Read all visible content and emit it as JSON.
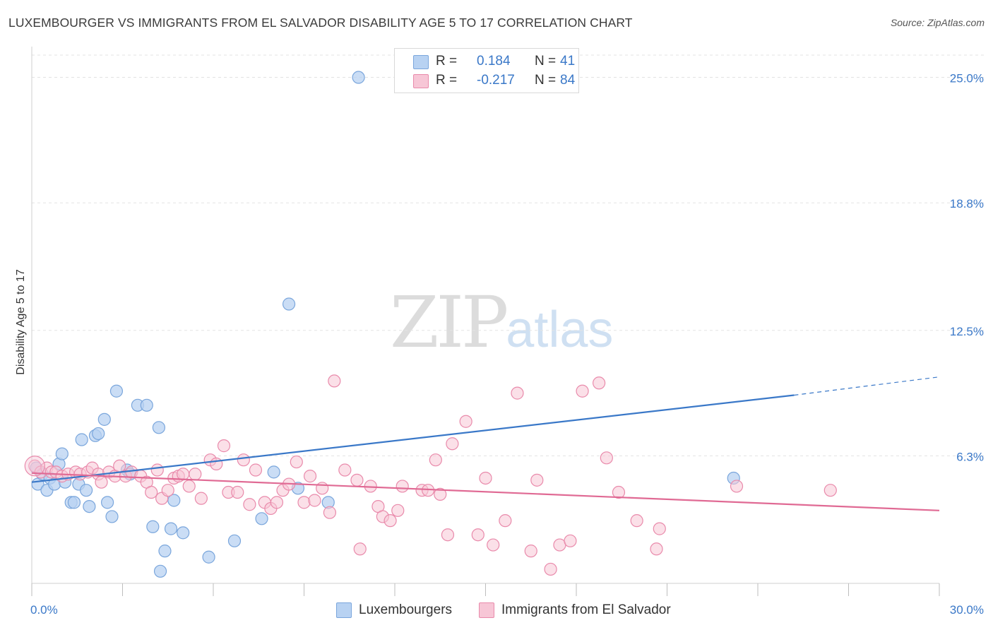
{
  "title": "LUXEMBOURGER VS IMMIGRANTS FROM EL SALVADOR DISABILITY AGE 5 TO 17 CORRELATION CHART",
  "source": "Source: ZipAtlas.com",
  "watermark": {
    "part1": "ZIP",
    "part2": "atlas"
  },
  "legend": {
    "rows": [
      {
        "r_label": "R =",
        "r_value": "0.184",
        "n_label": "N =",
        "n_value": "41"
      },
      {
        "r_label": "R =",
        "r_value": "-0.217",
        "n_label": "N =",
        "n_value": "84"
      }
    ]
  },
  "colors": {
    "blue_fill": "#b8d2f2",
    "blue_stroke": "#7aa6dc",
    "blue_line": "#3a78c8",
    "pink_fill": "#f7c6d6",
    "pink_stroke": "#e98aab",
    "pink_line": "#e06a94",
    "tick_text": "#3a78c8",
    "grid": "#e3e3e3"
  },
  "chart_data": {
    "type": "scatter",
    "title": "LUXEMBOURGER VS IMMIGRANTS FROM EL SALVADOR DISABILITY AGE 5 TO 17 CORRELATION CHART",
    "xlabel": "",
    "ylabel": "Disability Age 5 to 17",
    "xlim": [
      0,
      30
    ],
    "ylim": [
      0,
      26.1
    ],
    "x_tick_labels": [
      "0.0%",
      "30.0%"
    ],
    "y_ticks": [
      6.3,
      12.5,
      18.8,
      25.0
    ],
    "y_tick_labels": [
      "6.3%",
      "12.5%",
      "18.8%",
      "25.0%"
    ],
    "series": [
      {
        "name": "Luxembourgers",
        "r": 0.184,
        "n": 41,
        "trend": {
          "x0": 0,
          "y0": 5.0,
          "x1": 25.2,
          "y1": 9.3,
          "dash_to_x": 30,
          "dash_to_y": 10.2
        },
        "points": [
          [
            0.15,
            5.7
          ],
          [
            0.2,
            4.9
          ],
          [
            0.35,
            5.4
          ],
          [
            0.5,
            4.6
          ],
          [
            0.6,
            5.2
          ],
          [
            0.75,
            4.9
          ],
          [
            0.9,
            5.9
          ],
          [
            1.0,
            6.4
          ],
          [
            1.1,
            5.0
          ],
          [
            1.3,
            4.0
          ],
          [
            1.4,
            4.0
          ],
          [
            1.55,
            4.9
          ],
          [
            1.65,
            7.1
          ],
          [
            1.8,
            4.6
          ],
          [
            1.9,
            3.8
          ],
          [
            2.1,
            7.3
          ],
          [
            2.2,
            7.4
          ],
          [
            2.4,
            8.1
          ],
          [
            2.5,
            4.0
          ],
          [
            2.65,
            3.3
          ],
          [
            2.8,
            9.5
          ],
          [
            3.15,
            5.6
          ],
          [
            3.25,
            5.4
          ],
          [
            3.5,
            8.8
          ],
          [
            3.8,
            8.8
          ],
          [
            4.0,
            2.8
          ],
          [
            4.2,
            7.7
          ],
          [
            4.25,
            0.6
          ],
          [
            4.4,
            1.6
          ],
          [
            4.6,
            2.7
          ],
          [
            4.7,
            4.1
          ],
          [
            5.0,
            2.5
          ],
          [
            5.85,
            1.3
          ],
          [
            6.7,
            2.1
          ],
          [
            7.6,
            3.2
          ],
          [
            8.0,
            5.5
          ],
          [
            8.5,
            13.8
          ],
          [
            8.8,
            4.7
          ],
          [
            9.8,
            4.0
          ],
          [
            10.8,
            25.0
          ],
          [
            23.2,
            5.2
          ]
        ]
      },
      {
        "name": "Immigrants from El Salvador",
        "r": -0.217,
        "n": 84,
        "trend": {
          "x0": 0,
          "y0": 5.45,
          "x1": 30,
          "y1": 3.6
        },
        "points": [
          [
            0.1,
            5.8
          ],
          [
            0.3,
            5.5
          ],
          [
            0.5,
            5.7
          ],
          [
            0.65,
            5.5
          ],
          [
            0.8,
            5.5
          ],
          [
            1.0,
            5.3
          ],
          [
            1.2,
            5.4
          ],
          [
            1.45,
            5.5
          ],
          [
            1.6,
            5.4
          ],
          [
            1.85,
            5.5
          ],
          [
            2.0,
            5.7
          ],
          [
            2.2,
            5.4
          ],
          [
            2.3,
            5.0
          ],
          [
            2.55,
            5.5
          ],
          [
            2.75,
            5.3
          ],
          [
            2.9,
            5.8
          ],
          [
            3.1,
            5.3
          ],
          [
            3.3,
            5.5
          ],
          [
            3.6,
            5.3
          ],
          [
            3.8,
            5.0
          ],
          [
            3.95,
            4.5
          ],
          [
            4.15,
            5.6
          ],
          [
            4.3,
            4.2
          ],
          [
            4.5,
            4.6
          ],
          [
            4.7,
            5.2
          ],
          [
            4.85,
            5.3
          ],
          [
            5.0,
            5.4
          ],
          [
            5.2,
            4.8
          ],
          [
            5.4,
            5.4
          ],
          [
            5.6,
            4.2
          ],
          [
            5.9,
            6.1
          ],
          [
            6.1,
            5.9
          ],
          [
            6.35,
            6.8
          ],
          [
            6.5,
            4.5
          ],
          [
            6.8,
            4.5
          ],
          [
            7.0,
            6.1
          ],
          [
            7.2,
            3.9
          ],
          [
            7.4,
            5.6
          ],
          [
            7.7,
            4.0
          ],
          [
            7.9,
            3.7
          ],
          [
            8.1,
            4.0
          ],
          [
            8.3,
            4.6
          ],
          [
            8.5,
            4.9
          ],
          [
            8.75,
            6.0
          ],
          [
            9.0,
            4.0
          ],
          [
            9.2,
            5.3
          ],
          [
            9.35,
            4.1
          ],
          [
            9.6,
            4.7
          ],
          [
            9.85,
            3.5
          ],
          [
            10.0,
            10.0
          ],
          [
            10.35,
            5.6
          ],
          [
            10.75,
            5.1
          ],
          [
            10.85,
            1.7
          ],
          [
            11.2,
            4.8
          ],
          [
            11.45,
            3.8
          ],
          [
            11.6,
            3.3
          ],
          [
            11.85,
            3.1
          ],
          [
            12.1,
            3.6
          ],
          [
            12.25,
            4.8
          ],
          [
            12.9,
            4.6
          ],
          [
            13.1,
            4.6
          ],
          [
            13.35,
            6.1
          ],
          [
            13.5,
            4.4
          ],
          [
            13.75,
            2.4
          ],
          [
            13.9,
            6.9
          ],
          [
            14.35,
            8.0
          ],
          [
            14.75,
            2.4
          ],
          [
            15.0,
            5.2
          ],
          [
            15.25,
            1.9
          ],
          [
            15.65,
            3.1
          ],
          [
            16.05,
            9.4
          ],
          [
            16.5,
            1.6
          ],
          [
            16.7,
            5.1
          ],
          [
            17.15,
            0.7
          ],
          [
            17.45,
            1.9
          ],
          [
            17.8,
            2.1
          ],
          [
            18.2,
            9.5
          ],
          [
            18.75,
            9.9
          ],
          [
            19.0,
            6.2
          ],
          [
            19.4,
            4.5
          ],
          [
            20.0,
            3.1
          ],
          [
            20.65,
            1.7
          ],
          [
            20.75,
            2.7
          ],
          [
            23.3,
            4.8
          ],
          [
            26.4,
            4.6
          ]
        ]
      }
    ]
  },
  "bottom_legend": {
    "items": [
      {
        "label": "Luxembourgers"
      },
      {
        "label": "Immigrants from El Salvador"
      }
    ]
  }
}
